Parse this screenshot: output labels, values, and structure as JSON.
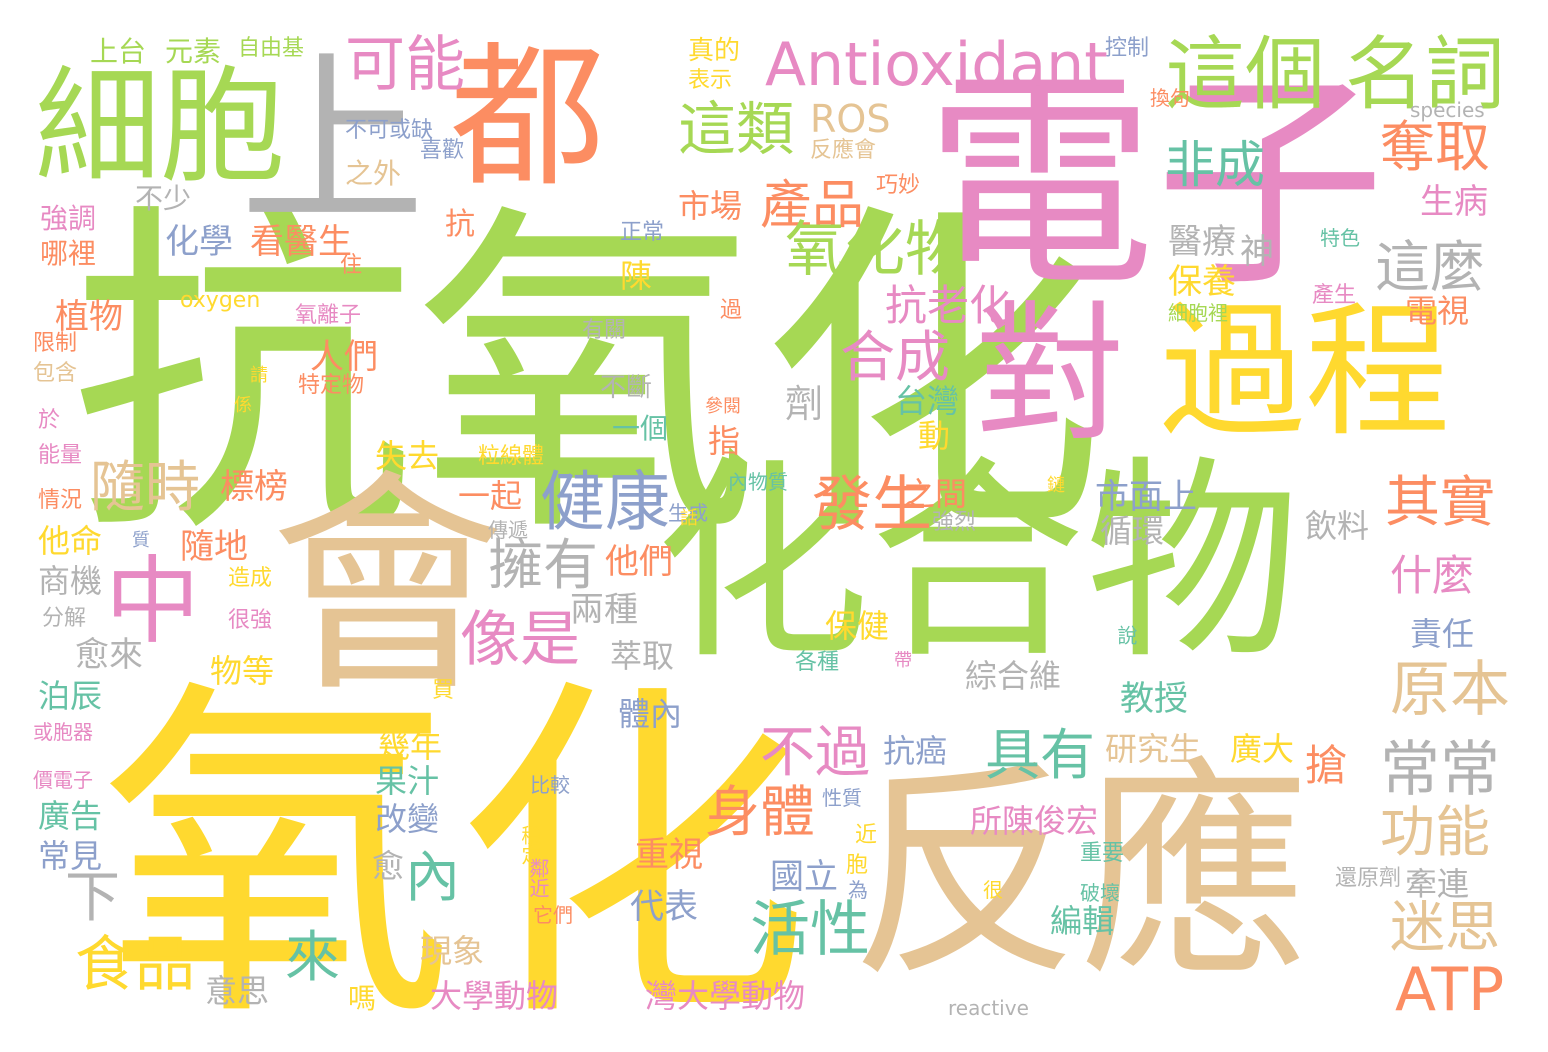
{
  "word_cloud": {
    "palette": {
      "green": "#a6d854",
      "yellow": "#ffd92f",
      "tan": "#e5c494",
      "pink": "#e78ac3",
      "orange": "#fc8d62",
      "blue": "#8da0cb",
      "teal": "#66c2a5",
      "gray": "#b3b3b3"
    },
    "words": [
      {
        "text": "抗氧化",
        "color": "green"
      },
      {
        "text": "氧化",
        "color": "yellow"
      },
      {
        "text": "化合物",
        "color": "green"
      },
      {
        "text": "電子",
        "color": "pink"
      },
      {
        "text": "反應",
        "color": "tan"
      },
      {
        "text": "會",
        "color": "tan"
      },
      {
        "text": "都",
        "color": "orange"
      },
      {
        "text": "對",
        "color": "pink"
      },
      {
        "text": "過程",
        "color": "yellow"
      },
      {
        "text": "細胞",
        "color": "green"
      },
      {
        "text": "上",
        "color": "gray"
      },
      {
        "text": "中",
        "color": "pink"
      },
      {
        "text": "這個",
        "color": "green"
      },
      {
        "text": "名詞",
        "color": "green"
      },
      {
        "text": "Antioxidant",
        "color": "pink"
      },
      {
        "text": "可能",
        "color": "pink"
      },
      {
        "text": "上台",
        "color": "green"
      },
      {
        "text": "元素",
        "color": "green"
      },
      {
        "text": "自由基",
        "color": "green"
      },
      {
        "text": "控制",
        "color": "blue"
      },
      {
        "text": "真的",
        "color": "yellow"
      },
      {
        "text": "表示",
        "color": "yellow"
      },
      {
        "text": "換句",
        "color": "orange"
      },
      {
        "text": "species",
        "color": "gray"
      },
      {
        "text": "這類",
        "color": "green"
      },
      {
        "text": "ROS",
        "color": "tan"
      },
      {
        "text": "非成",
        "color": "teal"
      },
      {
        "text": "奪取",
        "color": "orange"
      },
      {
        "text": "不可或缺",
        "color": "blue"
      },
      {
        "text": "之外",
        "color": "tan"
      },
      {
        "text": "喜歡",
        "color": "blue"
      },
      {
        "text": "反應會",
        "color": "tan"
      },
      {
        "text": "產品",
        "color": "orange"
      },
      {
        "text": "巧妙",
        "color": "orange"
      },
      {
        "text": "市場",
        "color": "orange"
      },
      {
        "text": "生病",
        "color": "pink"
      },
      {
        "text": "不少",
        "color": "gray"
      },
      {
        "text": "強調",
        "color": "pink"
      },
      {
        "text": "哪裡",
        "color": "orange"
      },
      {
        "text": "化學",
        "color": "blue"
      },
      {
        "text": "看醫生",
        "color": "orange"
      },
      {
        "text": "抗",
        "color": "orange"
      },
      {
        "text": "正常",
        "color": "blue"
      },
      {
        "text": "氧化物",
        "color": "green"
      },
      {
        "text": "醫療",
        "color": "gray"
      },
      {
        "text": "神",
        "color": "gray"
      },
      {
        "text": "特色",
        "color": "teal"
      },
      {
        "text": "這麼",
        "color": "gray"
      },
      {
        "text": "住",
        "color": "orange"
      },
      {
        "text": "oxygen",
        "color": "yellow"
      },
      {
        "text": "陳",
        "color": "yellow"
      },
      {
        "text": "保養",
        "color": "yellow"
      },
      {
        "text": "產生",
        "color": "pink"
      },
      {
        "text": "植物",
        "color": "orange"
      },
      {
        "text": "氧離子",
        "color": "pink"
      },
      {
        "text": "過",
        "color": "orange"
      },
      {
        "text": "抗老化",
        "color": "pink"
      },
      {
        "text": "細胞裡",
        "color": "green"
      },
      {
        "text": "電視",
        "color": "orange"
      },
      {
        "text": "限制",
        "color": "orange"
      },
      {
        "text": "包含",
        "color": "tan"
      },
      {
        "text": "有關",
        "color": "gray"
      },
      {
        "text": "合成",
        "color": "pink"
      },
      {
        "text": "人們",
        "color": "orange"
      },
      {
        "text": "特定物",
        "color": "orange"
      },
      {
        "text": "請",
        "color": "yellow"
      },
      {
        "text": "不斷",
        "color": "gray"
      },
      {
        "text": "係",
        "color": "yellow"
      },
      {
        "text": "參閱",
        "color": "orange"
      },
      {
        "text": "劑",
        "color": "gray"
      },
      {
        "text": "台灣",
        "color": "teal"
      },
      {
        "text": "於",
        "color": "pink"
      },
      {
        "text": "一個",
        "color": "teal"
      },
      {
        "text": "指",
        "color": "orange"
      },
      {
        "text": "動",
        "color": "yellow"
      },
      {
        "text": "能量",
        "color": "pink"
      },
      {
        "text": "失去",
        "color": "yellow"
      },
      {
        "text": "粒線體",
        "color": "yellow"
      },
      {
        "text": "隨時",
        "color": "tan"
      },
      {
        "text": "標榜",
        "color": "orange"
      },
      {
        "text": "一起",
        "color": "orange"
      },
      {
        "text": "健康",
        "color": "blue"
      },
      {
        "text": "發生",
        "color": "orange"
      },
      {
        "text": "之間",
        "color": "orange"
      },
      {
        "text": "內物質",
        "color": "teal"
      },
      {
        "text": "市面上",
        "color": "blue"
      },
      {
        "text": "鏈",
        "color": "yellow"
      },
      {
        "text": "其實",
        "color": "orange"
      },
      {
        "text": "情況",
        "color": "orange"
      },
      {
        "text": "生成",
        "color": "blue"
      },
      {
        "text": "話",
        "color": "yellow"
      },
      {
        "text": "強烈",
        "color": "gray"
      },
      {
        "text": "飲料",
        "color": "gray"
      },
      {
        "text": "循環",
        "color": "gray"
      },
      {
        "text": "傳遞",
        "color": "gray"
      },
      {
        "text": "隨地",
        "color": "orange"
      },
      {
        "text": "他命",
        "color": "yellow"
      },
      {
        "text": "質",
        "color": "blue"
      },
      {
        "text": "擁有",
        "color": "gray"
      },
      {
        "text": "他們",
        "color": "orange"
      },
      {
        "text": "什麼",
        "color": "pink"
      },
      {
        "text": "造成",
        "color": "yellow"
      },
      {
        "text": "商機",
        "color": "gray"
      },
      {
        "text": "兩種",
        "color": "gray"
      },
      {
        "text": "像是",
        "color": "pink"
      },
      {
        "text": "分解",
        "color": "gray"
      },
      {
        "text": "很強",
        "color": "pink"
      },
      {
        "text": "保健",
        "color": "yellow"
      },
      {
        "text": "責任",
        "color": "blue"
      },
      {
        "text": "愈來",
        "color": "gray"
      },
      {
        "text": "萃取",
        "color": "gray"
      },
      {
        "text": "各種",
        "color": "teal"
      },
      {
        "text": "帶",
        "color": "pink"
      },
      {
        "text": "說",
        "color": "teal"
      },
      {
        "text": "物等",
        "color": "yellow"
      },
      {
        "text": "綜合維",
        "color": "gray"
      },
      {
        "text": "泊辰",
        "color": "teal"
      },
      {
        "text": "買",
        "color": "yellow"
      },
      {
        "text": "教授",
        "color": "teal"
      },
      {
        "text": "原本",
        "color": "tan"
      },
      {
        "text": "或胞器",
        "color": "pink"
      },
      {
        "text": "體內",
        "color": "blue"
      },
      {
        "text": "幾年",
        "color": "yellow"
      },
      {
        "text": "不過",
        "color": "pink"
      },
      {
        "text": "抗癌",
        "color": "blue"
      },
      {
        "text": "具有",
        "color": "teal"
      },
      {
        "text": "研究生",
        "color": "tan"
      },
      {
        "text": "廣大",
        "color": "yellow"
      },
      {
        "text": "搶",
        "color": "orange"
      },
      {
        "text": "常常",
        "color": "gray"
      },
      {
        "text": "價電子",
        "color": "pink"
      },
      {
        "text": "果汁",
        "color": "teal"
      },
      {
        "text": "比較",
        "color": "blue"
      },
      {
        "text": "身體",
        "color": "orange"
      },
      {
        "text": "性質",
        "color": "blue"
      },
      {
        "text": "廣告",
        "color": "teal"
      },
      {
        "text": "改變",
        "color": "blue"
      },
      {
        "text": "所陳俊宏",
        "color": "pink"
      },
      {
        "text": "功能",
        "color": "tan"
      },
      {
        "text": "常見",
        "color": "blue"
      },
      {
        "text": "穩定",
        "color": "yellow"
      },
      {
        "text": "重視",
        "color": "orange"
      },
      {
        "text": "近",
        "color": "yellow"
      },
      {
        "text": "內",
        "color": "teal"
      },
      {
        "text": "愈",
        "color": "gray"
      },
      {
        "text": "胞",
        "color": "yellow"
      },
      {
        "text": "國立",
        "color": "blue"
      },
      {
        "text": "重要",
        "color": "teal"
      },
      {
        "text": "還原劑",
        "color": "gray"
      },
      {
        "text": "牽連",
        "color": "gray"
      },
      {
        "text": "下",
        "color": "gray"
      },
      {
        "text": "鄰近",
        "color": "pink"
      },
      {
        "text": "破壞",
        "color": "teal"
      },
      {
        "text": "迷思",
        "color": "tan"
      },
      {
        "text": "代表",
        "color": "blue"
      },
      {
        "text": "為",
        "color": "blue"
      },
      {
        "text": "很",
        "color": "yellow"
      },
      {
        "text": "它們",
        "color": "orange"
      },
      {
        "text": "活性",
        "color": "teal"
      },
      {
        "text": "編輯",
        "color": "teal"
      },
      {
        "text": "食品",
        "color": "yellow"
      },
      {
        "text": "來",
        "color": "teal"
      },
      {
        "text": "現象",
        "color": "tan"
      },
      {
        "text": "ATP",
        "color": "orange"
      },
      {
        "text": "意思",
        "color": "gray"
      },
      {
        "text": "嗎",
        "color": "yellow"
      },
      {
        "text": "大學動物",
        "color": "pink"
      },
      {
        "text": "灣大學動物",
        "color": "pink"
      },
      {
        "text": "reactive",
        "color": "gray"
      }
    ]
  }
}
